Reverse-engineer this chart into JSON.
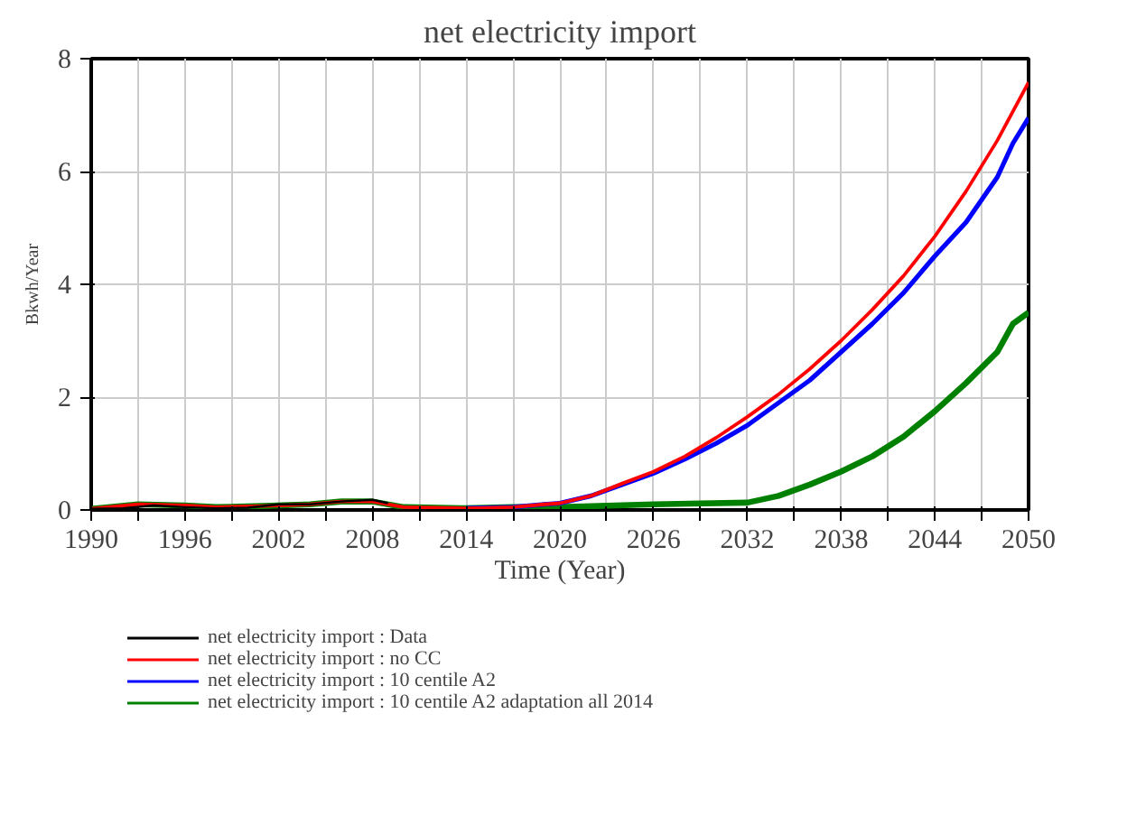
{
  "chart_data": {
    "type": "line",
    "title": "net electricity import",
    "xlabel": "Time (Year)",
    "ylabel": "Bkwh/Year",
    "xlim": [
      1990,
      2050
    ],
    "ylim": [
      0,
      8
    ],
    "xticks": [
      1990,
      {
        "value": 1993,
        "label": null
      },
      1996,
      {
        "value": 1999,
        "label": null
      },
      2002,
      {
        "value": 2005,
        "label": null
      },
      2008,
      {
        "value": 2011,
        "label": null
      },
      2014,
      {
        "value": 2017,
        "label": null
      },
      2020,
      {
        "value": 2023,
        "label": null
      },
      2026,
      {
        "value": 2029,
        "label": null
      },
      2032,
      {
        "value": 2035,
        "label": null
      },
      2038,
      {
        "value": 2041,
        "label": null
      },
      2044,
      {
        "value": 2047,
        "label": null
      },
      2050
    ],
    "yticks": [
      0,
      2,
      4,
      6,
      8
    ],
    "grid": true,
    "legend": "bottom",
    "marker": "none",
    "line_style": "solid",
    "series": [
      {
        "name": "net electricity import : Data",
        "color": "#000000",
        "x": [
          1990,
          1992,
          1994,
          1996,
          1998,
          2000,
          2002,
          2004,
          2006,
          2008,
          2009
        ],
        "values": [
          0.02,
          0.03,
          0.08,
          0.05,
          0.03,
          0.04,
          0.1,
          0.1,
          0.15,
          0.18,
          0.12
        ]
      },
      {
        "name": "net electricity import : no CC",
        "color": "#ff0000",
        "x": [
          1990,
          1993,
          1996,
          1998,
          2001,
          2004,
          2006,
          2008,
          2010,
          2014,
          2017,
          2019,
          2020,
          2022,
          2024,
          2026,
          2028,
          2030,
          2032,
          2034,
          2036,
          2038,
          2040,
          2042,
          2044,
          2046,
          2048,
          2050
        ],
        "values": [
          0.02,
          0.1,
          0.08,
          0.05,
          0.07,
          0.1,
          0.15,
          0.15,
          0.05,
          0.03,
          0.05,
          0.1,
          0.12,
          0.25,
          0.47,
          0.68,
          0.95,
          1.28,
          1.65,
          2.05,
          2.5,
          3.0,
          3.55,
          4.15,
          4.85,
          5.65,
          6.55,
          7.58
        ]
      },
      {
        "name": "net electricity import : 10 centile A2",
        "color": "#0000ff",
        "x": [
          2014,
          2017,
          2019,
          2020,
          2022,
          2024,
          2026,
          2028,
          2030,
          2032,
          2034,
          2036,
          2038,
          2040,
          2042,
          2044,
          2046,
          2048,
          2049,
          2050
        ],
        "values": [
          0.03,
          0.05,
          0.1,
          0.12,
          0.25,
          0.45,
          0.65,
          0.9,
          1.18,
          1.5,
          1.9,
          2.3,
          2.8,
          3.3,
          3.85,
          4.5,
          5.1,
          5.9,
          6.5,
          6.95
        ]
      },
      {
        "name": "net electricity import : 10 centile A2 adaptation all 2014",
        "color": "#008000",
        "x": [
          1990,
          1993,
          1996,
          1998,
          2001,
          2004,
          2006,
          2008,
          2010,
          2014,
          2017,
          2020,
          2026,
          2032,
          2034,
          2036,
          2038,
          2040,
          2042,
          2044,
          2046,
          2048,
          2049,
          2050
        ],
        "values": [
          0.02,
          0.1,
          0.08,
          0.05,
          0.07,
          0.1,
          0.15,
          0.15,
          0.05,
          0.03,
          0.05,
          0.05,
          0.1,
          0.13,
          0.25,
          0.45,
          0.68,
          0.95,
          1.3,
          1.75,
          2.25,
          2.8,
          3.3,
          3.5
        ]
      }
    ]
  }
}
